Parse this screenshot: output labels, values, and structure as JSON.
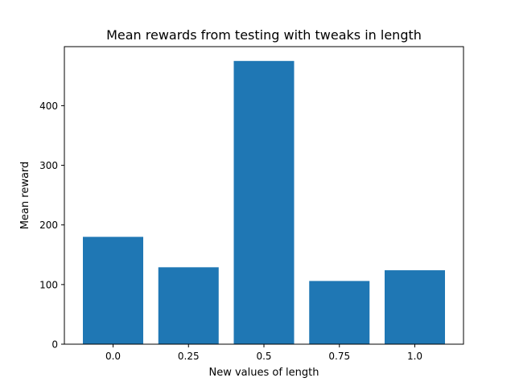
{
  "chart_data": {
    "type": "bar",
    "title": "Mean rewards from testing with tweaks in length",
    "xlabel": "New values of length",
    "ylabel": "Mean reward",
    "categories": [
      "0.0",
      "0.25",
      "0.5",
      "0.75",
      "1.0"
    ],
    "values": [
      180,
      129,
      475,
      106,
      124
    ],
    "ylim": [
      0,
      499
    ],
    "yticks": [
      0,
      100,
      200,
      300,
      400
    ],
    "grid": false,
    "bar_color": "#1f77b4"
  }
}
